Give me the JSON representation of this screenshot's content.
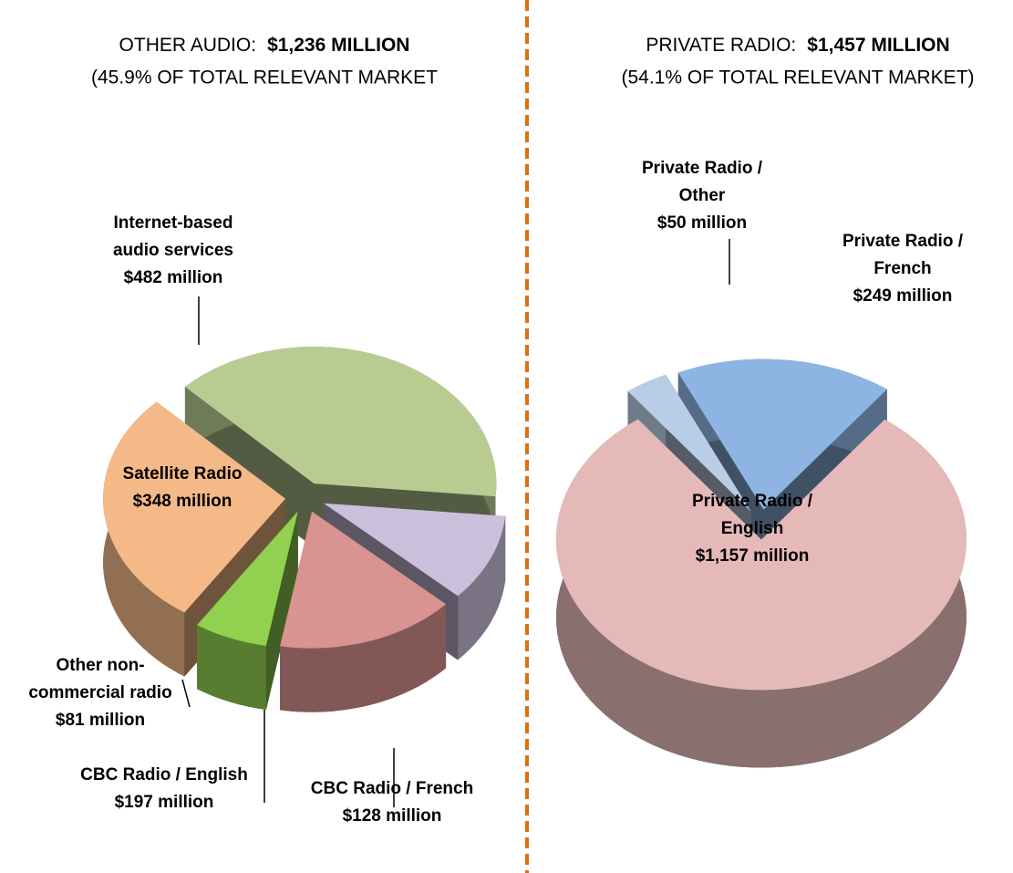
{
  "chart_data": [
    {
      "type": "pie",
      "title": "OTHER AUDIO:",
      "title_emphasis": "$1,236 MILLION",
      "subtitle": "(45.9% OF TOTAL RELEVANT MARKET",
      "categories": [
        "Internet-based\naudio services",
        "CBC Radio / French",
        "CBC Radio / English",
        "Other non-\ncommercial radio",
        "Satellite Radio"
      ],
      "values": [
        482,
        128,
        197,
        81,
        348
      ],
      "value_labels": [
        "$482 million",
        "$128 million",
        "$197 million",
        "$81 million",
        "$348 million"
      ],
      "colors": [
        "#b8cc92",
        "#cbc0dc",
        "#d99390",
        "#92d050",
        "#f5b987"
      ]
    },
    {
      "type": "pie",
      "title": "PRIVATE RADIO:",
      "title_emphasis": "$1,457 MILLION",
      "subtitle": "(54.1% OF TOTAL RELEVANT MARKET)",
      "categories": [
        "Private Radio /\nEnglish",
        "Private Radio /\nOther",
        "Private Radio /\nFrench"
      ],
      "values": [
        1157,
        50,
        249
      ],
      "value_labels": [
        "$1,157 million",
        "$50 million",
        "$249 million"
      ],
      "colors": [
        "#e5b9b8",
        "#b9cde4",
        "#8eb4e3"
      ]
    }
  ]
}
